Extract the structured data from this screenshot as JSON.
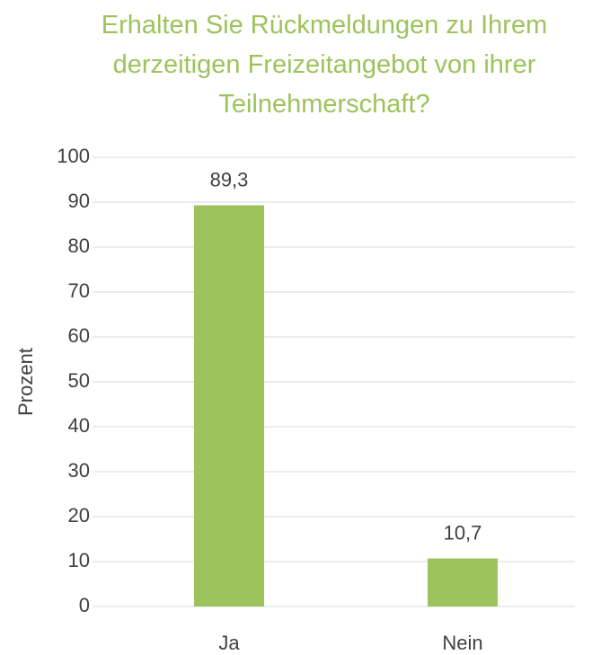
{
  "chart_data": {
    "type": "bar",
    "title": "Erhalten Sie Rückmeldungen zu Ihrem derzeitigen Freizeitangebot von ihrer Teilnehmerschaft?",
    "ylabel": "Prozent",
    "categories": [
      "Ja",
      "Nein"
    ],
    "values": [
      89.3,
      10.7
    ],
    "value_labels": [
      "89,3",
      "10,7"
    ],
    "color": "#9dc35c",
    "ylim": [
      0,
      100
    ],
    "yticks": [
      0,
      10,
      20,
      30,
      40,
      50,
      60,
      70,
      80,
      90,
      100
    ],
    "grid": true
  }
}
